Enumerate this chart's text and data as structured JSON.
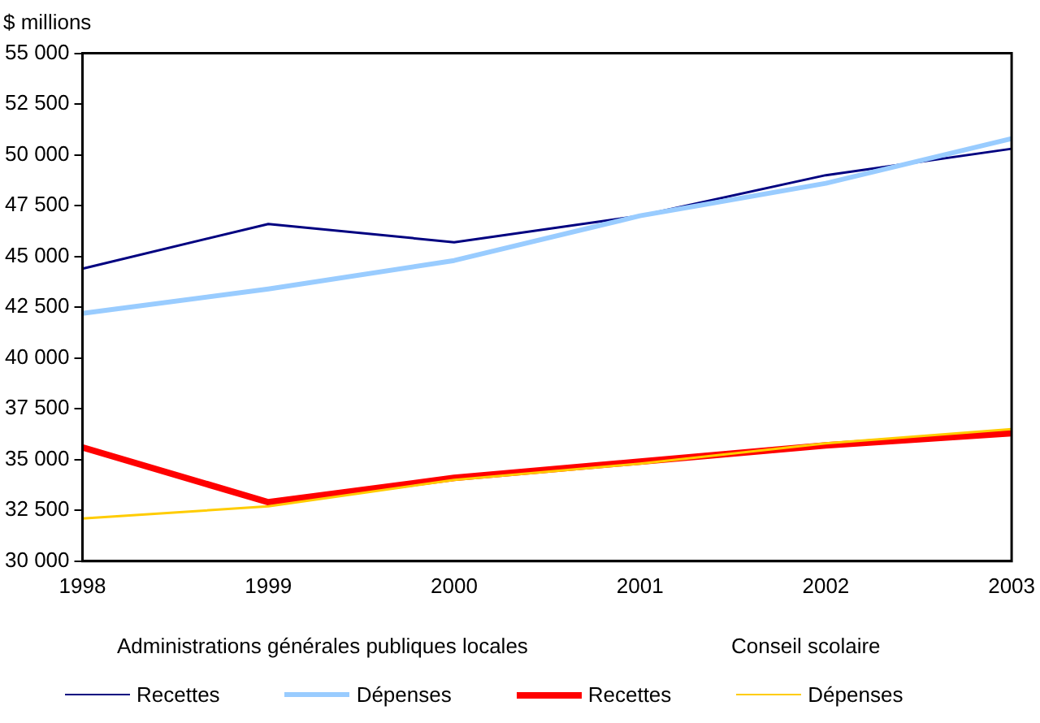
{
  "chart_data": {
    "type": "line",
    "ylabel": "$ millions",
    "categories": [
      "1998",
      "1999",
      "2000",
      "2001",
      "2002",
      "2003"
    ],
    "series": [
      {
        "name": "Recettes",
        "color": "#000080",
        "values": [
          44400,
          46600,
          45700,
          47000,
          49000,
          50300
        ]
      },
      {
        "name": "Dépenses",
        "color": "#99ccff",
        "values": [
          42200,
          43400,
          44800,
          47000,
          48600,
          50800
        ]
      },
      {
        "name": "Recettes",
        "color": "#ff0000",
        "values": [
          35600,
          32900,
          34100,
          34900,
          35700,
          36300
        ]
      },
      {
        "name": "Dépenses",
        "color": "#ffcc00",
        "values": [
          32100,
          32700,
          34000,
          34800,
          35800,
          36500
        ]
      }
    ],
    "ylim": [
      30000,
      55000
    ],
    "yticks": [
      {
        "value": 30000,
        "label": "30 000"
      },
      {
        "value": 32500,
        "label": "32 500"
      },
      {
        "value": 35000,
        "label": "35 000"
      },
      {
        "value": 37500,
        "label": "37 500"
      },
      {
        "value": 40000,
        "label": "40 000"
      },
      {
        "value": 42500,
        "label": "42 500"
      },
      {
        "value": 45000,
        "label": "45 000"
      },
      {
        "value": 47500,
        "label": "47 500"
      },
      {
        "value": 50000,
        "label": "50 000"
      },
      {
        "value": 52500,
        "label": "52 500"
      },
      {
        "value": 55000,
        "label": "55 000"
      }
    ],
    "annotations": [
      "Administrations générales publiques locales",
      "Conseil scolaire"
    ],
    "grid": false,
    "legend": "bottom",
    "marker": "none",
    "line_style": "solid"
  }
}
